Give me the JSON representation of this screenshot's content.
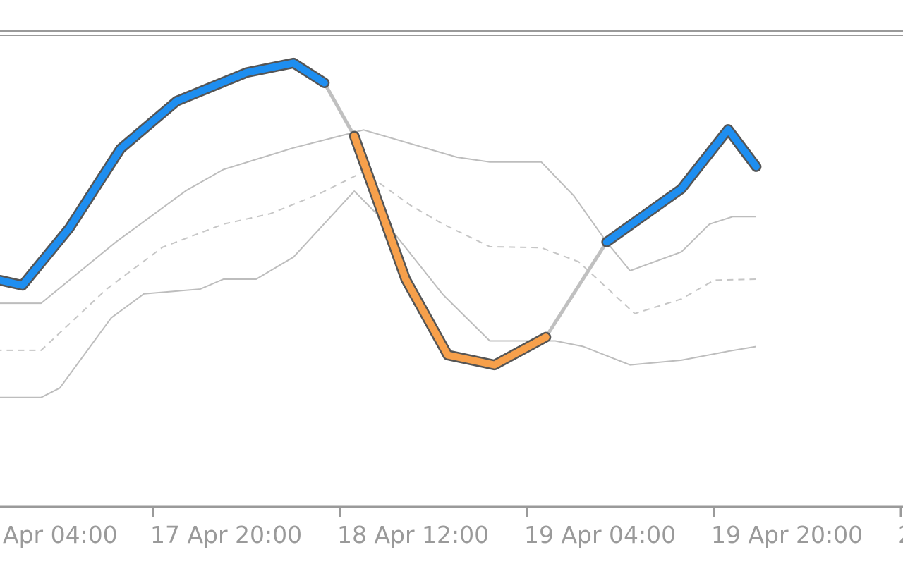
{
  "chart_data": {
    "type": "line",
    "title": "",
    "xlabel": "",
    "ylabel": "",
    "x_ticks": [
      "Apr 04:00",
      "17 Apr 20:00",
      "18 Apr 12:00",
      "19 Apr 04:00",
      "19 Apr 20:00",
      "2"
    ],
    "ylim": [
      0,
      100
    ],
    "grid": false,
    "series": [
      {
        "role": "main-line",
        "style": "thick-trend",
        "colors": {
          "up": "#1e8ef0",
          "down": "#f7a04b",
          "transition": "#c0c0c0",
          "outline": "#555555"
        },
        "points": [
          [
            -0.1,
            48.2
          ],
          [
            0.48,
            46.9
          ],
          [
            1.48,
            59.0
          ],
          [
            2.58,
            75.9
          ],
          [
            3.78,
            86.0
          ],
          [
            5.28,
            92.1
          ],
          [
            6.28,
            94.1
          ],
          [
            6.94,
            89.9
          ],
          [
            7.58,
            78.6
          ],
          [
            8.68,
            48.2
          ],
          [
            9.58,
            32.1
          ],
          [
            10.58,
            30.0
          ],
          [
            11.68,
            35.9
          ],
          [
            12.98,
            56.1
          ],
          [
            14.58,
            67.4
          ],
          [
            15.58,
            80.0
          ],
          [
            16.18,
            72.1
          ]
        ],
        "segments": [
          {
            "trend": "up",
            "from": 0,
            "to": 6.94
          },
          {
            "trend": "transition",
            "from": 6.94,
            "to": 7.58
          },
          {
            "trend": "down",
            "from": 7.58,
            "to": 11.68
          },
          {
            "trend": "transition",
            "from": 11.68,
            "to": 12.98
          },
          {
            "trend": "up",
            "from": 12.98,
            "to": 16.18
          }
        ]
      },
      {
        "role": "upper-band",
        "style": "solid",
        "color": "#bdbdbd",
        "points": [
          [
            -0.1,
            43.1
          ],
          [
            0.88,
            43.1
          ],
          [
            2.48,
            56.1
          ],
          [
            3.98,
            67.0
          ],
          [
            4.78,
            71.5
          ],
          [
            6.28,
            76.1
          ],
          [
            7.78,
            79.9
          ],
          [
            9.78,
            74.1
          ],
          [
            10.48,
            73.1
          ],
          [
            11.58,
            73.1
          ],
          [
            12.28,
            65.9
          ],
          [
            12.98,
            56.1
          ],
          [
            13.48,
            50.0
          ],
          [
            14.58,
            54.0
          ],
          [
            15.18,
            59.9
          ],
          [
            15.68,
            61.5
          ],
          [
            16.18,
            61.5
          ]
        ]
      },
      {
        "role": "middle-line",
        "style": "dashed",
        "color": "#c6c6c6",
        "points": [
          [
            -0.1,
            33.1
          ],
          [
            0.88,
            33.1
          ],
          [
            2.28,
            46.1
          ],
          [
            3.48,
            55.0
          ],
          [
            4.78,
            59.9
          ],
          [
            5.78,
            62.1
          ],
          [
            6.78,
            66.1
          ],
          [
            7.78,
            71.0
          ],
          [
            8.78,
            63.9
          ],
          [
            9.48,
            59.9
          ],
          [
            10.48,
            55.1
          ],
          [
            11.58,
            54.9
          ],
          [
            12.38,
            51.9
          ],
          [
            13.58,
            40.9
          ],
          [
            14.58,
            44.0
          ],
          [
            15.28,
            48.0
          ],
          [
            16.18,
            48.2
          ]
        ]
      },
      {
        "role": "lower-band",
        "style": "solid",
        "color": "#bdbdbd",
        "points": [
          [
            -0.1,
            23.1
          ],
          [
            0.88,
            23.1
          ],
          [
            1.28,
            25.1
          ],
          [
            2.38,
            40.0
          ],
          [
            3.08,
            45.1
          ],
          [
            4.28,
            46.1
          ],
          [
            4.78,
            48.2
          ],
          [
            5.48,
            48.2
          ],
          [
            6.28,
            52.9
          ],
          [
            7.58,
            66.9
          ],
          [
            8.28,
            59.9
          ],
          [
            9.48,
            44.9
          ],
          [
            10.48,
            35.1
          ],
          [
            11.88,
            35.1
          ],
          [
            12.48,
            33.9
          ],
          [
            13.48,
            30.0
          ],
          [
            14.58,
            31.0
          ],
          [
            15.58,
            32.9
          ],
          [
            16.18,
            33.9
          ]
        ]
      }
    ]
  }
}
